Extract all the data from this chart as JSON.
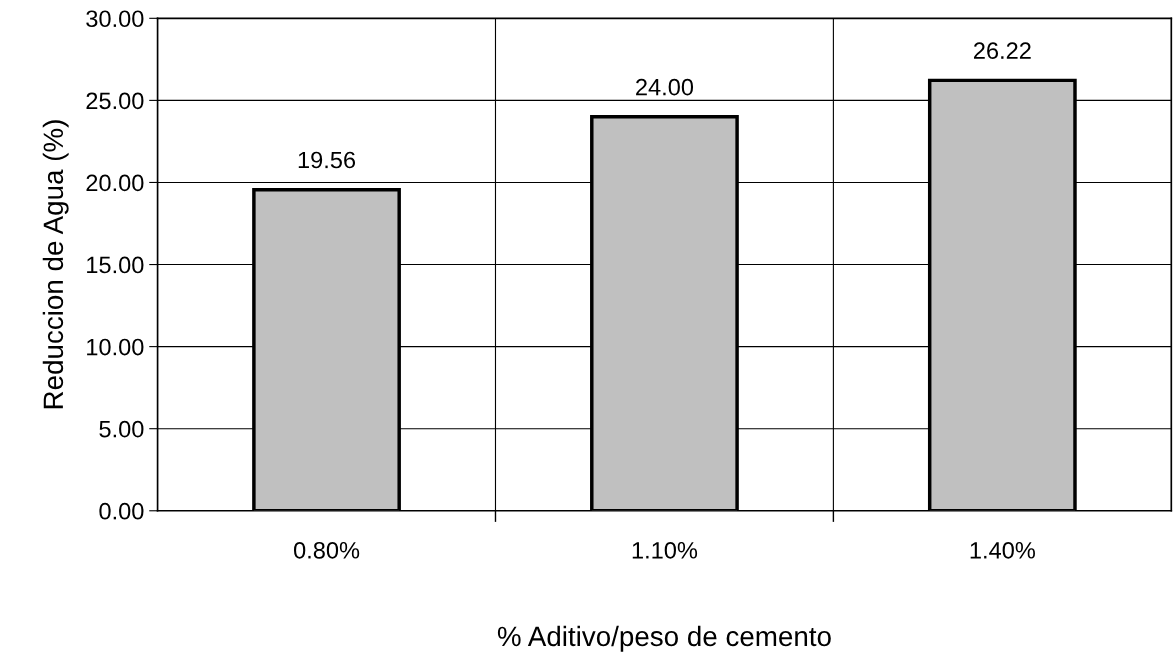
{
  "chart_data": {
    "type": "bar",
    "xlabel": "% Aditivo/peso de cemento",
    "ylabel": "Reduccion de Agua (%)",
    "categories": [
      "0.80%",
      "1.10%",
      "1.40%"
    ],
    "values": [
      19.56,
      24.0,
      26.22
    ],
    "value_labels": [
      "19.56",
      "24.00",
      "26.22"
    ],
    "color": "#c0c0c0",
    "ylim": [
      0,
      30
    ],
    "yticks": [
      {
        "value": 0,
        "label": "0.00"
      },
      {
        "value": 5,
        "label": "5.00"
      },
      {
        "value": 10,
        "label": "10.00"
      },
      {
        "value": 15,
        "label": "15.00"
      },
      {
        "value": 20,
        "label": "20.00"
      },
      {
        "value": 25,
        "label": "25.00"
      },
      {
        "value": 30,
        "label": "30.00"
      }
    ],
    "grid": true,
    "legend": false
  }
}
